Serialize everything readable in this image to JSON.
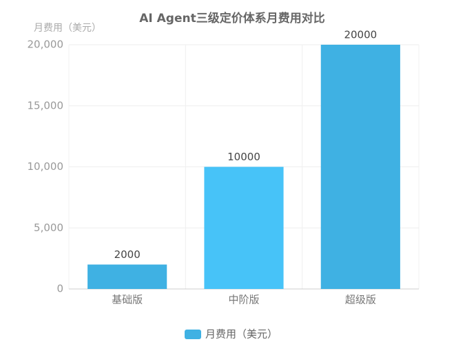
{
  "chart_data": {
    "type": "bar",
    "title": "AI Agent三级定价体系月费用对比",
    "y_label": "月费用（美元）",
    "categories": [
      "基础版",
      "中阶版",
      "超级版"
    ],
    "series": [
      {
        "name": "月费用（美元）",
        "color": "#3fb1e3",
        "values": [
          2000,
          10000,
          20000
        ]
      }
    ],
    "bar_colors": [
      "#3fb1e3",
      "#47c3f8",
      "#3fb1e3"
    ],
    "ylim": [
      0,
      20000
    ],
    "yticks": [
      0,
      {
        "value": 5000,
        "label": "5,000"
      },
      {
        "value": 10000,
        "label": "10,000"
      },
      {
        "value": 15000,
        "label": "15,000"
      },
      {
        "value": 20000,
        "label": "20,000"
      }
    ],
    "grid": true
  }
}
